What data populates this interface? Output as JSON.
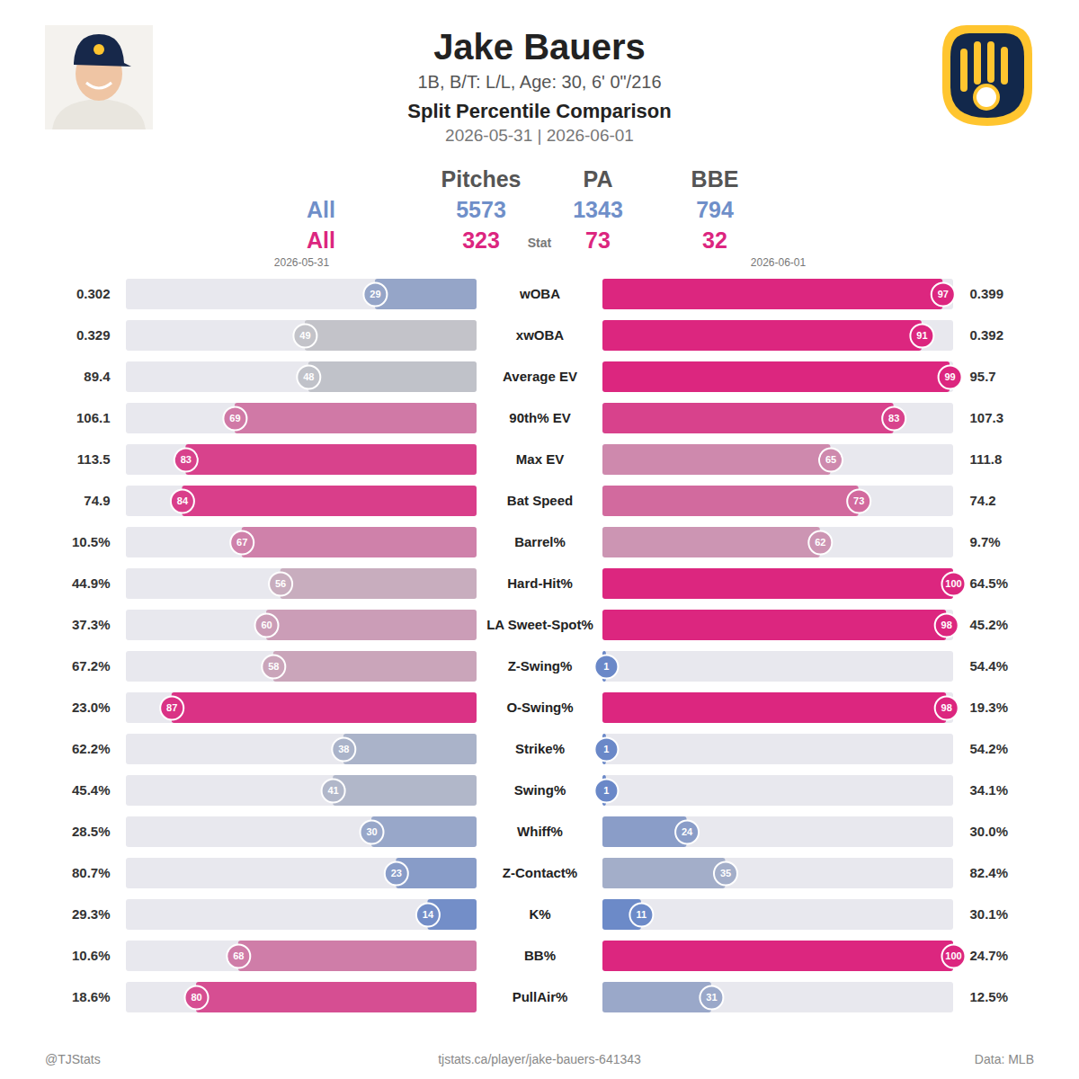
{
  "header": {
    "title": "Jake Bauers",
    "subtitle": "1B, B/T: L/L, Age: 30, 6' 0\"/216",
    "chart_title": "Split Percentile Comparison",
    "dates": "2026-05-31 | 2026-06-01"
  },
  "summary": {
    "columns": [
      "Pitches",
      "PA",
      "BBE"
    ],
    "stat_label": "Stat",
    "rows": [
      {
        "label": "All",
        "values": [
          5573,
          1343,
          794
        ],
        "color": "#6f8fc9"
      },
      {
        "label": "All",
        "values": [
          323,
          73,
          32
        ],
        "color": "#dc267f"
      }
    ]
  },
  "chart_data": [
    {
      "type": "bar",
      "orientation": "horizontal",
      "title": "2026-05-31",
      "categories": [
        "wOBA",
        "xwOBA",
        "Average EV",
        "90th% EV",
        "Max EV",
        "Bat Speed",
        "Barrel%",
        "Hard-Hit%",
        "LA Sweet-Spot%",
        "Z-Swing%",
        "O-Swing%",
        "Strike%",
        "Swing%",
        "Whiff%",
        "Z-Contact%",
        "K%",
        "BB%",
        "PullAir%"
      ],
      "values": [
        29,
        49,
        48,
        69,
        83,
        84,
        67,
        56,
        60,
        58,
        87,
        38,
        41,
        30,
        23,
        14,
        68,
        80
      ],
      "stat_labels": [
        "0.302",
        "0.329",
        "89.4",
        "106.1",
        "113.5",
        "74.9",
        "10.5%",
        "44.9%",
        "37.3%",
        "67.2%",
        "23.0%",
        "62.2%",
        "45.4%",
        "28.5%",
        "80.7%",
        "29.3%",
        "10.6%",
        "18.6%"
      ],
      "xlim": [
        100,
        0
      ],
      "tick_labels": false,
      "data_labels": true
    },
    {
      "type": "bar",
      "orientation": "horizontal",
      "title": "2026-06-01",
      "categories": [
        "wOBA",
        "xwOBA",
        "Average EV",
        "90th% EV",
        "Max EV",
        "Bat Speed",
        "Barrel%",
        "Hard-Hit%",
        "LA Sweet-Spot%",
        "Z-Swing%",
        "O-Swing%",
        "Strike%",
        "Swing%",
        "Whiff%",
        "Z-Contact%",
        "K%",
        "BB%",
        "PullAir%"
      ],
      "values": [
        97,
        91,
        99,
        83,
        65,
        73,
        62,
        100,
        98,
        1,
        98,
        1,
        1,
        24,
        35,
        11,
        100,
        31
      ],
      "stat_labels": [
        "0.399",
        "0.392",
        "95.7",
        "107.3",
        "111.8",
        "74.2",
        "9.7%",
        "64.5%",
        "45.2%",
        "54.4%",
        "19.3%",
        "54.2%",
        "34.1%",
        "30.0%",
        "82.4%",
        "30.1%",
        "24.7%",
        "12.5%"
      ],
      "xlim": [
        0,
        100
      ],
      "tick_labels": false,
      "data_labels": true
    }
  ],
  "footer": {
    "left": "@TJStats",
    "center": "tjstats.ca/player/jake-bauers-641343",
    "right": "Data: MLB"
  }
}
